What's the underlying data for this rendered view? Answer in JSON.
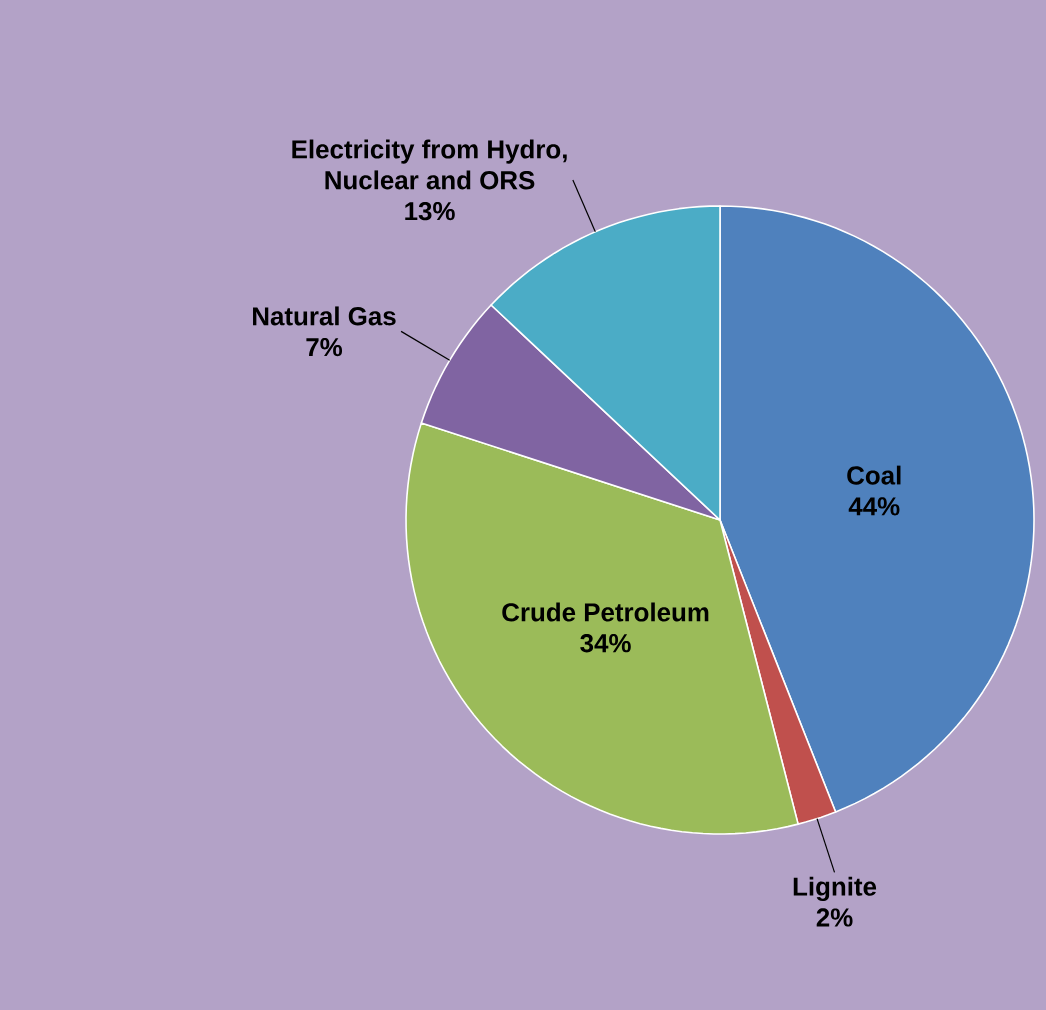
{
  "chart_data": {
    "type": "pie",
    "categories": [
      "Coal",
      "Lignite",
      "Crude Petroleum",
      "Natural Gas",
      "Electricity from Hydro, Nuclear and ORS"
    ],
    "values": [
      44,
      2,
      34,
      7,
      13
    ],
    "value_labels": [
      "44%",
      "2%",
      "34%",
      "7%",
      "13%"
    ],
    "colors": [
      "#4f81bd",
      "#c0504d",
      "#9bbb59",
      "#8064a2",
      "#4bacc6"
    ]
  }
}
